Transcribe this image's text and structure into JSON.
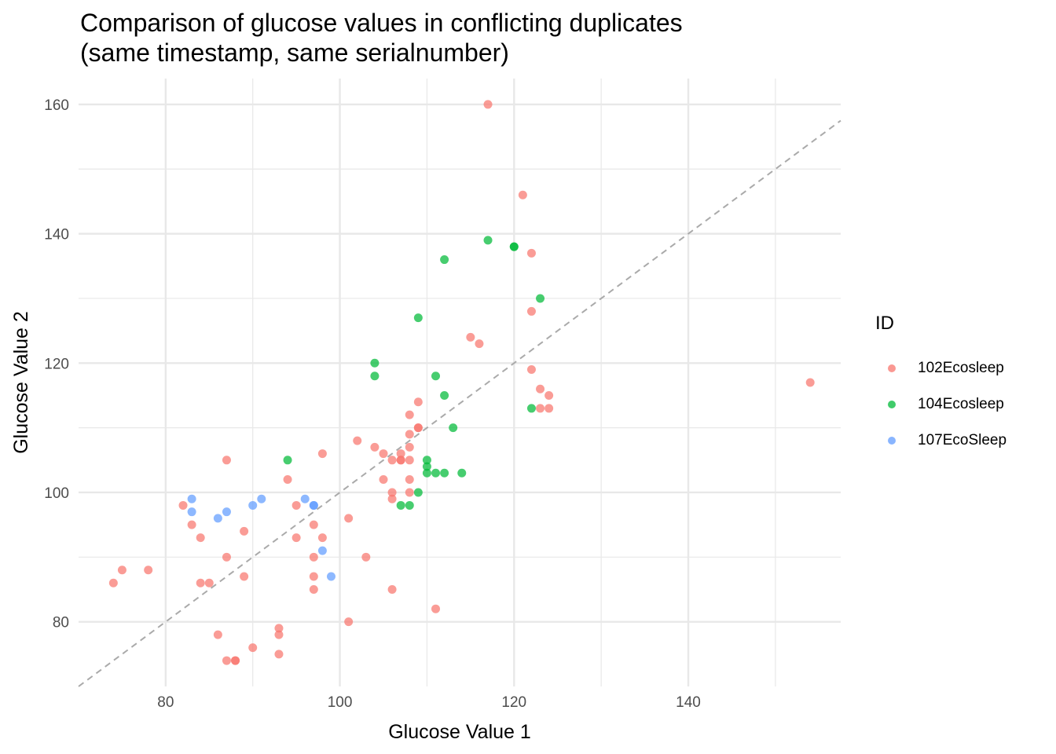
{
  "title_line1": "Comparison of glucose values in conflicting duplicates",
  "title_line2": "(same timestamp, same serialnumber)",
  "colors": {
    "102Ecosleep": "#F8766D",
    "104Ecosleep": "#00BA38",
    "107EcoSleep": "#619CFF",
    "diagonal": "#aaaaaa",
    "grid": "#e8e8e8"
  },
  "chart_data": {
    "type": "scatter",
    "xlabel": "Glucose Value 1",
    "ylabel": "Glucose Value 2",
    "xlim": [
      70,
      157.5
    ],
    "ylim": [
      70,
      164
    ],
    "x_ticks": [
      80,
      100,
      120,
      140
    ],
    "y_ticks": [
      80,
      100,
      120,
      140,
      160
    ],
    "grid": true,
    "reference_line": "y = x (dashed)",
    "legend": {
      "title": "ID",
      "position": "right"
    },
    "series": [
      {
        "name": "102Ecosleep",
        "points": [
          [
            117,
            160
          ],
          [
            121,
            146
          ],
          [
            122,
            137
          ],
          [
            122,
            128
          ],
          [
            115,
            124
          ],
          [
            116,
            123
          ],
          [
            122,
            119
          ],
          [
            123,
            116
          ],
          [
            124,
            115
          ],
          [
            123,
            113
          ],
          [
            124,
            113
          ],
          [
            154,
            117
          ],
          [
            109,
            114
          ],
          [
            108,
            112
          ],
          [
            109,
            110
          ],
          [
            109,
            110
          ],
          [
            108,
            109
          ],
          [
            102,
            108
          ],
          [
            104,
            107
          ],
          [
            108,
            107
          ],
          [
            98,
            106
          ],
          [
            105,
            106
          ],
          [
            107,
            106
          ],
          [
            106,
            105
          ],
          [
            107,
            105
          ],
          [
            107,
            105
          ],
          [
            108,
            105
          ],
          [
            87,
            105
          ],
          [
            94,
            102
          ],
          [
            105,
            102
          ],
          [
            108,
            102
          ],
          [
            106,
            100
          ],
          [
            108,
            100
          ],
          [
            106,
            99
          ],
          [
            82,
            98
          ],
          [
            95,
            98
          ],
          [
            101,
            96
          ],
          [
            83,
            95
          ],
          [
            97,
            95
          ],
          [
            89,
            94
          ],
          [
            84,
            93
          ],
          [
            95,
            93
          ],
          [
            98,
            93
          ],
          [
            87,
            90
          ],
          [
            97,
            90
          ],
          [
            103,
            90
          ],
          [
            75,
            88
          ],
          [
            78,
            88
          ],
          [
            89,
            87
          ],
          [
            97,
            87
          ],
          [
            74,
            86
          ],
          [
            84,
            86
          ],
          [
            85,
            86
          ],
          [
            97,
            85
          ],
          [
            106,
            85
          ],
          [
            111,
            82
          ],
          [
            101,
            80
          ],
          [
            93,
            79
          ],
          [
            86,
            78
          ],
          [
            93,
            78
          ],
          [
            90,
            76
          ],
          [
            93,
            75
          ],
          [
            87,
            74
          ],
          [
            88,
            74
          ],
          [
            88,
            74
          ]
        ]
      },
      {
        "name": "104Ecosleep",
        "points": [
          [
            117,
            139
          ],
          [
            120,
            138
          ],
          [
            120,
            138
          ],
          [
            112,
            136
          ],
          [
            123,
            130
          ],
          [
            109,
            127
          ],
          [
            104,
            120
          ],
          [
            104,
            118
          ],
          [
            111,
            118
          ],
          [
            112,
            115
          ],
          [
            122,
            113
          ],
          [
            113,
            110
          ],
          [
            94,
            105
          ],
          [
            110,
            105
          ],
          [
            110,
            104
          ],
          [
            110,
            103
          ],
          [
            111,
            103
          ],
          [
            112,
            103
          ],
          [
            114,
            103
          ],
          [
            109,
            100
          ],
          [
            107,
            98
          ],
          [
            108,
            98
          ]
        ]
      },
      {
        "name": "107EcoSleep",
        "points": [
          [
            83,
            99
          ],
          [
            91,
            99
          ],
          [
            96,
            99
          ],
          [
            90,
            98
          ],
          [
            97,
            98
          ],
          [
            97,
            98
          ],
          [
            83,
            97
          ],
          [
            87,
            97
          ],
          [
            86,
            96
          ],
          [
            98,
            91
          ],
          [
            99,
            87
          ]
        ]
      }
    ]
  }
}
